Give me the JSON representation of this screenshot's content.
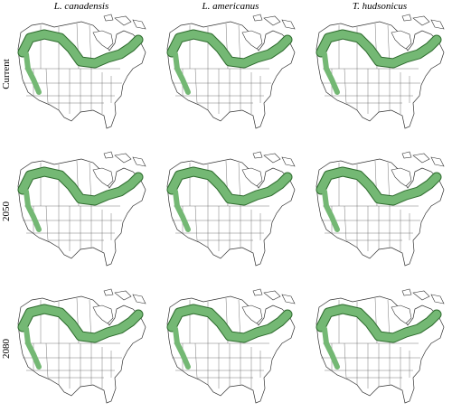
{
  "columns": [
    "L. canadensis",
    "L. americanus",
    "T. hudsonicus"
  ],
  "rows": [
    "Current",
    "2050",
    "2080"
  ]
}
